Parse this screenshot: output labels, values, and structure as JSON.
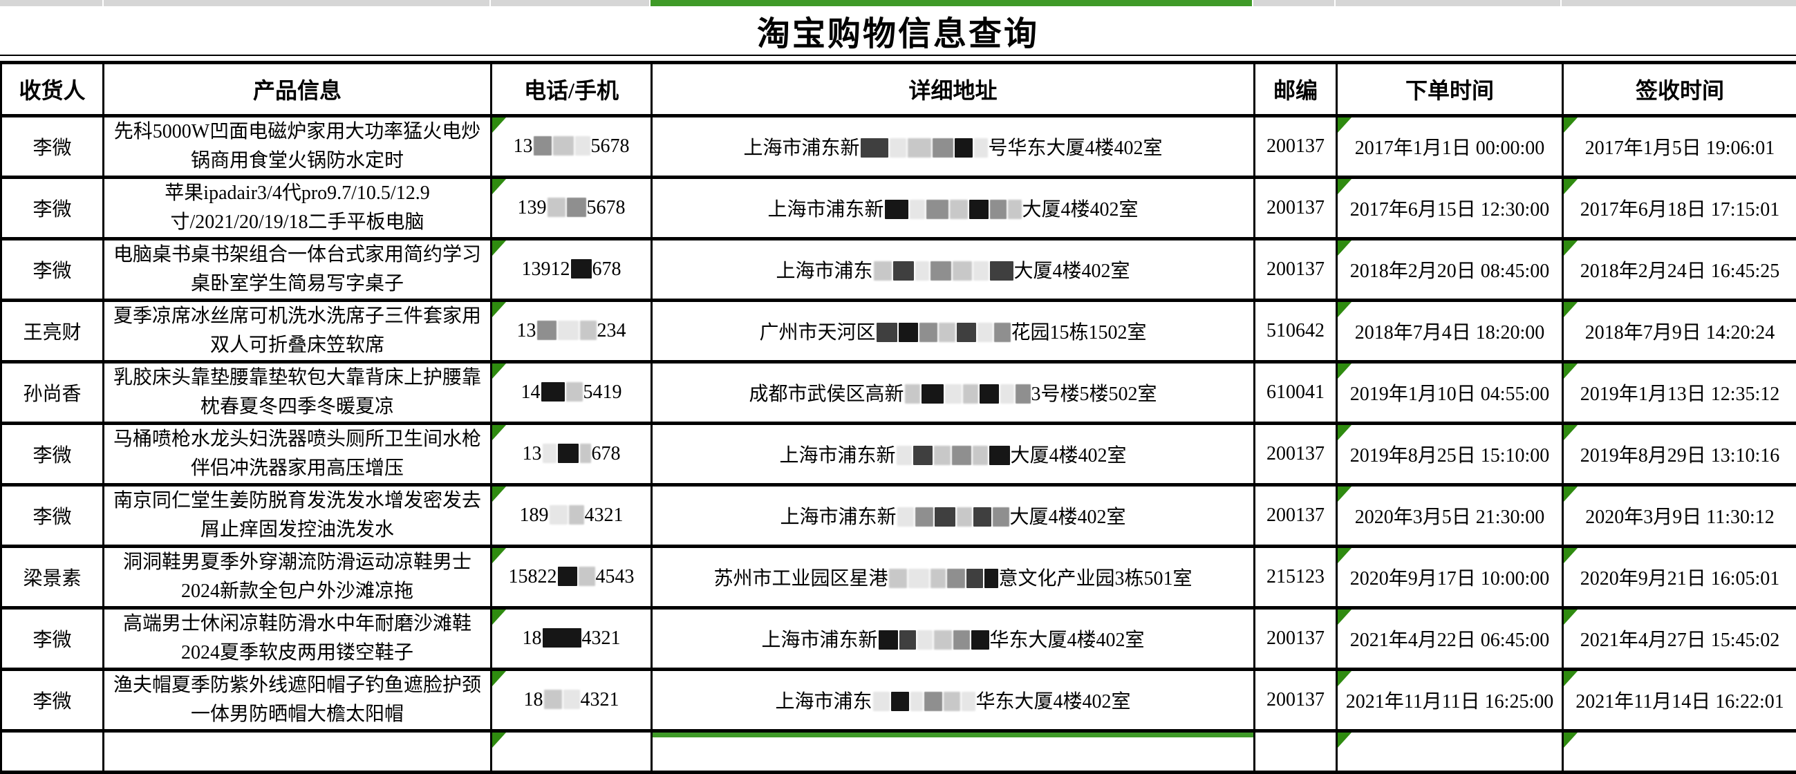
{
  "title": "淘宝购物信息查询",
  "columns": [
    {
      "label": "收货人"
    },
    {
      "label": "产品信息"
    },
    {
      "label": "电话/手机"
    },
    {
      "label": "详细地址"
    },
    {
      "label": "邮编"
    },
    {
      "label": "下单时间"
    },
    {
      "label": "签收时间"
    }
  ],
  "colors": {
    "triangle_green": "#2f8b10",
    "selection_green": "#3f9a28",
    "grid_line": "#000000",
    "strip_gray": "#d6d6d6"
  },
  "rows": [
    {
      "recipient": "李微",
      "product": "先科5000W凹面电磁炉家用大功率猛火电炒锅商用食堂火锅防水定时",
      "phone": {
        "start": "13",
        "mask": [
          {
            "tone": "mid",
            "w": 26
          },
          {
            "tone": "light",
            "w": 30
          },
          {
            "tone": "xlight",
            "w": 22
          }
        ],
        "end": "5678"
      },
      "addr": {
        "prefix": "上海市浦东新",
        "mask": [
          {
            "tone": "dark",
            "w": 40
          },
          {
            "tone": "xlight",
            "w": 24
          },
          {
            "tone": "light",
            "w": 34
          },
          {
            "tone": "mid",
            "w": 30
          },
          {
            "tone": "black",
            "w": 26
          },
          {
            "tone": "xlight",
            "w": 20
          }
        ],
        "suffix": "号华东大厦4楼402室"
      },
      "zip": "200137",
      "order_time": "2017年1月1日 00:00:00",
      "sign_time": "2017年1月5日 19:06:01"
    },
    {
      "recipient": "李微",
      "product": "苹果ipadair3/4代pro9.7/10.5/12.9寸/2021/20/19/18二手平板电脑",
      "phone": {
        "start": "139",
        "mask": [
          {
            "tone": "light",
            "w": 26
          },
          {
            "tone": "mid",
            "w": 28
          }
        ],
        "end": "5678"
      },
      "addr": {
        "prefix": "上海市浦东新",
        "mask": [
          {
            "tone": "black",
            "w": 34
          },
          {
            "tone": "xlight",
            "w": 22
          },
          {
            "tone": "mid",
            "w": 32
          },
          {
            "tone": "light",
            "w": 26
          },
          {
            "tone": "black",
            "w": 28
          },
          {
            "tone": "mid",
            "w": 24
          },
          {
            "tone": "light",
            "w": 20
          }
        ],
        "suffix": "大厦4楼402室"
      },
      "zip": "200137",
      "order_time": "2017年6月15日 12:30:00",
      "sign_time": "2017年6月18日 17:15:01"
    },
    {
      "recipient": "李微",
      "product": "电脑桌书桌书架组合一体台式家用简约学习桌卧室学生简易写字桌子",
      "phone": {
        "start": "13912",
        "mask": [
          {
            "tone": "black",
            "w": 30
          }
        ],
        "end": "678"
      },
      "addr": {
        "prefix": "上海市浦东",
        "mask": [
          {
            "tone": "light",
            "w": 26
          },
          {
            "tone": "dark",
            "w": 30
          },
          {
            "tone": "xlight",
            "w": 20
          },
          {
            "tone": "mid",
            "w": 30
          },
          {
            "tone": "light",
            "w": 28
          },
          {
            "tone": "xlight",
            "w": 22
          },
          {
            "tone": "dark",
            "w": 34
          }
        ],
        "suffix": "大厦4楼402室"
      },
      "zip": "200137",
      "order_time": "2018年2月20日 08:45:00",
      "sign_time": "2018年2月24日 16:45:25"
    },
    {
      "recipient": "王亮财",
      "product": "夏季凉席冰丝席可机洗水洗席子三件套家用双人可折叠床笠软席",
      "phone": {
        "start": "13",
        "mask": [
          {
            "tone": "mid",
            "w": 28
          },
          {
            "tone": "xlight",
            "w": 30
          },
          {
            "tone": "light",
            "w": 24
          }
        ],
        "end": "234"
      },
      "addr": {
        "prefix": "广州市天河区",
        "mask": [
          {
            "tone": "dark",
            "w": 30
          },
          {
            "tone": "black",
            "w": 28
          },
          {
            "tone": "mid",
            "w": 26
          },
          {
            "tone": "light",
            "w": 24
          },
          {
            "tone": "dark",
            "w": 28
          },
          {
            "tone": "xlight",
            "w": 22
          },
          {
            "tone": "mid",
            "w": 24
          }
        ],
        "suffix": "花园15栋1502室"
      },
      "zip": "510642",
      "order_time": "2018年7月4日 18:20:00",
      "sign_time": "2018年7月9日 14:20:24"
    },
    {
      "recipient": "孙尚香",
      "product": "乳胶床头靠垫腰靠垫软包大靠背床上护腰靠枕春夏冬四季冬暖夏凉",
      "phone": {
        "start": "14",
        "mask": [
          {
            "tone": "black",
            "w": 34
          },
          {
            "tone": "light",
            "w": 24
          }
        ],
        "end": "5419"
      },
      "addr": {
        "prefix": "成都市武侯区高新",
        "mask": [
          {
            "tone": "light",
            "w": 22
          },
          {
            "tone": "black",
            "w": 32
          },
          {
            "tone": "xlight",
            "w": 24
          },
          {
            "tone": "light",
            "w": 22
          },
          {
            "tone": "black",
            "w": 28
          },
          {
            "tone": "xlight",
            "w": 20
          },
          {
            "tone": "mid",
            "w": 22
          }
        ],
        "suffix": "3号楼5楼502室"
      },
      "zip": "610041",
      "order_time": "2019年1月10日 04:55:00",
      "sign_time": "2019年1月13日 12:35:12"
    },
    {
      "recipient": "李微",
      "product": "马桶喷枪水龙头妇洗器喷头厕所卫生间水枪伴侣冲洗器家用高压增压",
      "phone": {
        "start": "13",
        "mask": [
          {
            "tone": "xlight",
            "w": 20
          },
          {
            "tone": "black",
            "w": 30
          },
          {
            "tone": "light",
            "w": 16
          }
        ],
        "end": "678"
      },
      "addr": {
        "prefix": "上海市浦东新",
        "mask": [
          {
            "tone": "xlight",
            "w": 22
          },
          {
            "tone": "dark",
            "w": 28
          },
          {
            "tone": "light",
            "w": 24
          },
          {
            "tone": "mid",
            "w": 28
          },
          {
            "tone": "light",
            "w": 22
          },
          {
            "tone": "black",
            "w": 30
          }
        ],
        "suffix": "大厦4楼402室"
      },
      "zip": "200137",
      "order_time": "2019年8月25日 15:10:00",
      "sign_time": "2019年8月29日 13:10:16"
    },
    {
      "recipient": "李微",
      "product": "南京同仁堂生姜防脱育发洗发水增发密发去屑止痒固发控油洗发水",
      "phone": {
        "start": "189",
        "mask": [
          {
            "tone": "xlight",
            "w": 26
          },
          {
            "tone": "light",
            "w": 22
          }
        ],
        "end": "4321"
      },
      "addr": {
        "prefix": "上海市浦东新",
        "mask": [
          {
            "tone": "xlight",
            "w": 24
          },
          {
            "tone": "mid",
            "w": 26
          },
          {
            "tone": "dark",
            "w": 30
          },
          {
            "tone": "light",
            "w": 22
          },
          {
            "tone": "dark",
            "w": 26
          },
          {
            "tone": "mid",
            "w": 24
          }
        ],
        "suffix": "大厦4楼402室"
      },
      "zip": "200137",
      "order_time": "2020年3月5日 21:30:00",
      "sign_time": "2020年3月9日 11:30:12"
    },
    {
      "recipient": "梁景素",
      "product": "洞洞鞋男夏季外穿潮流防滑运动凉鞋男士2024新款全包户外沙滩凉拖",
      "phone": {
        "start": "15822",
        "mask": [
          {
            "tone": "black",
            "w": 28
          },
          {
            "tone": "light",
            "w": 24
          }
        ],
        "end": "4543"
      },
      "addr": {
        "prefix": "苏州市工业园区星港",
        "mask": [
          {
            "tone": "light",
            "w": 26
          },
          {
            "tone": "xlight",
            "w": 30
          },
          {
            "tone": "light",
            "w": 22
          },
          {
            "tone": "mid",
            "w": 26
          },
          {
            "tone": "dark",
            "w": 24
          },
          {
            "tone": "black",
            "w": 20
          }
        ],
        "suffix": "意文化产业园3栋501室"
      },
      "zip": "215123",
      "order_time": "2020年9月17日 10:00:00",
      "sign_time": "2020年9月21日 16:05:01"
    },
    {
      "recipient": "李微",
      "product": "高端男士休闲凉鞋防滑水中年耐磨沙滩鞋2024夏季软皮两用镂空鞋子",
      "phone": {
        "start": "18",
        "mask": [
          {
            "tone": "black",
            "w": 56
          }
        ],
        "end": "4321"
      },
      "addr": {
        "prefix": "上海市浦东新",
        "mask": [
          {
            "tone": "black",
            "w": 28
          },
          {
            "tone": "dark",
            "w": 24
          },
          {
            "tone": "xlight",
            "w": 22
          },
          {
            "tone": "light",
            "w": 26
          },
          {
            "tone": "mid",
            "w": 24
          },
          {
            "tone": "black",
            "w": 26
          }
        ],
        "suffix": "华东大厦4楼402室"
      },
      "zip": "200137",
      "order_time": "2021年4月22日 06:45:00",
      "sign_time": "2021年4月27日 15:45:02"
    },
    {
      "recipient": "李微",
      "product": "渔夫帽夏季防紫外线遮阳帽子钓鱼遮脸护颈一体男防晒帽大檐太阳帽",
      "phone": {
        "start": "18",
        "mask": [
          {
            "tone": "light",
            "w": 26
          },
          {
            "tone": "xlight",
            "w": 24
          }
        ],
        "end": "4321"
      },
      "addr": {
        "prefix": "上海市浦东",
        "mask": [
          {
            "tone": "xlight",
            "w": 24
          },
          {
            "tone": "black",
            "w": 26
          },
          {
            "tone": "xlight",
            "w": 18
          },
          {
            "tone": "mid",
            "w": 26
          },
          {
            "tone": "light",
            "w": 24
          },
          {
            "tone": "xlight",
            "w": 20
          }
        ],
        "suffix": "华东大厦4楼402室"
      },
      "zip": "200137",
      "order_time": "2021年11月11日 16:25:00",
      "sign_time": "2021年11月14日 16:22:01"
    }
  ]
}
